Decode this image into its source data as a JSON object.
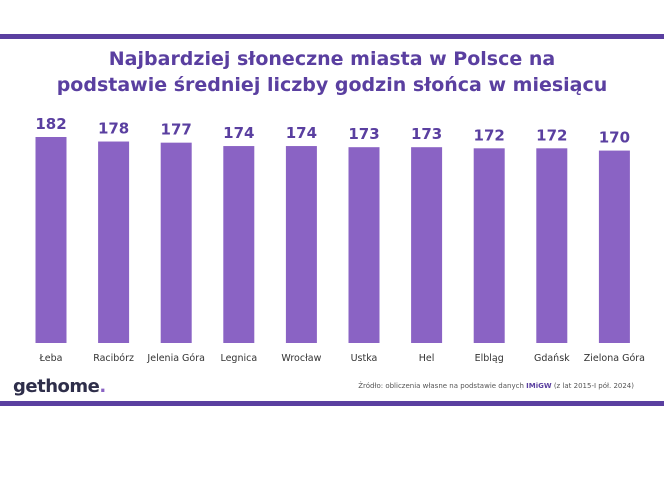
{
  "header": {
    "title_line1": "Najbardziej słoneczne miasta w Polsce na",
    "title_line2": "podstawie średniej liczby godzin słońca w miesiącu"
  },
  "footer": {
    "logo_text": "gethome",
    "logo_dot": ".",
    "source_prefix": "Źródło: obliczenia własne na podstawie danych",
    "source_brand": "IMiGW",
    "source_suffix": "(z lat 2015-I pół. 2024)"
  },
  "colors": {
    "bar": "#8a63c4",
    "value_label": "#5a3fa0",
    "frame": "#5a3fa0",
    "category_label": "#333333"
  },
  "chart_data": {
    "type": "bar",
    "title": "Najbardziej słoneczne miasta w Polsce na podstawie średniej liczby godzin słońca w miesiącu",
    "xlabel": "",
    "ylabel": "",
    "categories": [
      "Łeba",
      "Racibórz",
      "Jelenia Góra",
      "Legnica",
      "Wrocław",
      "Ustka",
      "Hel",
      "Elbląg",
      "Gdańsk",
      "Zielona Góra"
    ],
    "values": [
      182,
      178,
      177,
      174,
      174,
      173,
      173,
      172,
      172,
      170
    ],
    "ylim": [
      0,
      182
    ],
    "grid": false,
    "legend": "none",
    "data_labels": true
  }
}
